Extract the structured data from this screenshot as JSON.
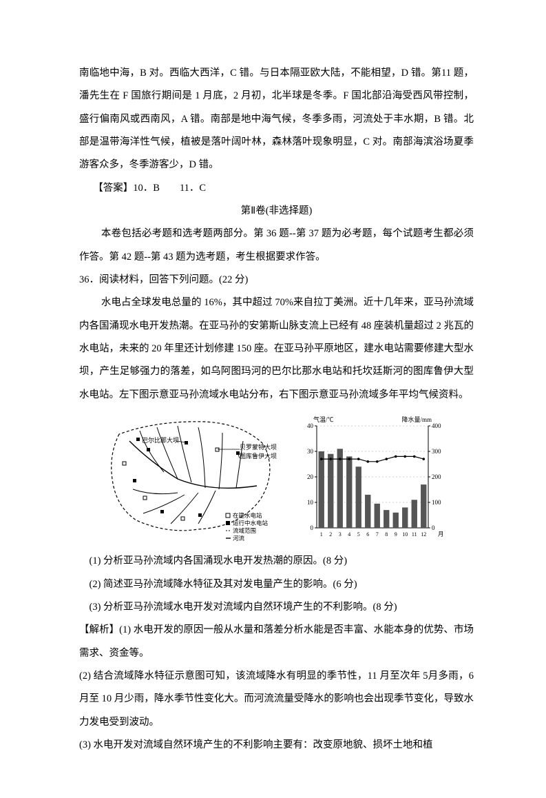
{
  "para1": "南临地中海，B 对。西临大西洋，C 错。与日本隔亚欧大陆，不能相望，D 错。第11 题，潘先生在 F 国旅行期间是 1 月底，2 月初，北半球是冬季。F 国北部沿海受西风带控制，盛行偏南风或西南风，A 错。南部是地中海气候，冬季多雨，河流处于丰水期，B 错。北部是温带海洋性气候，植被是落叶阔叶林，森林落叶现象明显，C 对。南部海滨浴场夏季游客众多，冬季游客少，D 错。",
  "answer1": "【答案】10．B　　11．C",
  "section_title": "第Ⅱ卷(非选择题)",
  "para2": "本卷包括必考题和选考题两部分。第 36 题--第 37 题为必考题，每个试题考生都必须作答。第 42 题--第 43 题为选考题，考生根据要求作答。",
  "q36_stem": "36．阅读材料，回答下列问题。(22 分)",
  "q36_body": "水电占全球发电总量的 16%，其中超过 70%来自拉丁美洲。近十几年来，亚马孙流域内各国涌现水电开发热潮。在亚马孙的安第斯山脉支流上已经有 48 座装机量超过 2 兆瓦的水电站，未来的 20 年里还计划修建 150 座。在亚马孙平原地区，建水电站需要修建大型水坝，产生足够强力的落差，如乌阿图玛河的巴尔比那水电站和托坎廷斯河的图库鲁伊大型水电站。左下图示意亚马孙流域水电站分布，右下图示意亚马孙流域多年平均气候资料。",
  "map_labels": {
    "dam1": "巴尔比那大坝",
    "dam2": "贝罗蒙特大坝",
    "dam3": "图库鲁伊大坝",
    "legend1": "在建水电站",
    "legend2": "运行中水电站",
    "legend3": "流域范围",
    "legend4": "河流"
  },
  "chart": {
    "y_left_label": "气温/℃",
    "y_right_label": "降水量/mm",
    "y_left_ticks": [
      "0",
      "10",
      "20",
      "30",
      "40"
    ],
    "y_right_ticks": [
      "0",
      "100",
      "200",
      "300",
      "400"
    ],
    "x_ticks": [
      "1",
      "2",
      "3",
      "4",
      "5",
      "6",
      "7",
      "8",
      "9",
      "10",
      "11",
      "12"
    ],
    "x_suffix": "月",
    "temp_values": [
      27,
      27,
      27,
      27,
      27,
      26,
      26,
      27,
      28,
      28,
      28,
      27
    ],
    "precip_values": [
      300,
      290,
      310,
      280,
      240,
      130,
      95,
      70,
      60,
      80,
      110,
      170
    ],
    "bar_color": "#555555",
    "line_color": "#000000",
    "grid_color": "#888888",
    "bg_color": "#ffffff",
    "y_left_max": 40,
    "y_right_max": 400
  },
  "sub_q1": "(1) 分析亚马孙流域内各国涌现水电开发热潮的原因。(8 分)",
  "sub_q2": "(2) 简述亚马孙流域降水特征及其对发电量产生的影响。(6 分)",
  "sub_q3": "(3) 分析亚马孙流域水电开发对流域内自然环境产生的不利影响。(8 分)",
  "analysis1": "【解析】(1) 水电开发的原因一般从水量和落差分析水能是否丰富、水能本身的优势、市场需求、资金等。",
  "analysis2": "(2) 结合流域降水特征示意图可知，该流域降水有明显的季节性，11 月至次年 5月多雨，6 月至 10 月少雨，降水季节性变化大。而河流流量受降水的影响也会出现季节变化，导致水力发电受到波动。",
  "analysis3": "(3) 水电开发对流域自然环境产生的不利影响主要有：改变原地貌、损坏土地和植"
}
